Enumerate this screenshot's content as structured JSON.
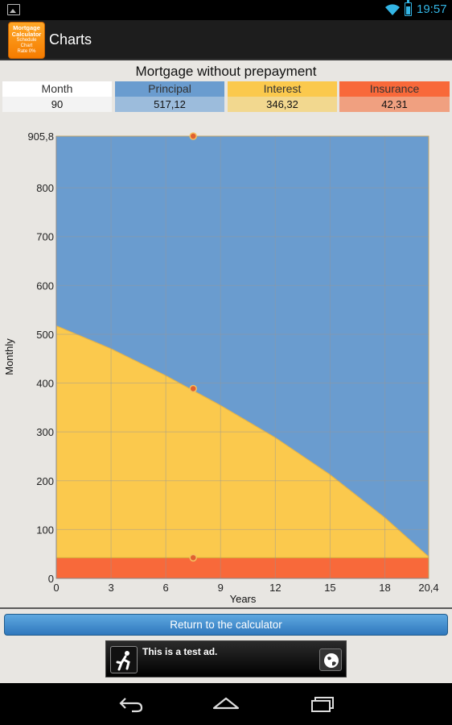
{
  "status_bar": {
    "time": "19:57"
  },
  "action_bar": {
    "title": "Charts",
    "app_icon_lines": [
      "Mortgage",
      "Calculator",
      "Schedule",
      "Chart",
      "Rate 0%"
    ]
  },
  "summary": {
    "title": "Mortgage without prepayment",
    "columns": [
      {
        "header": "Month",
        "value": "90"
      },
      {
        "header": "Principal",
        "value": "517,12"
      },
      {
        "header": "Interest",
        "value": "346,32"
      },
      {
        "header": "Insurance",
        "value": "42,31"
      }
    ]
  },
  "chart_data": {
    "type": "area",
    "stacked": true,
    "xlabel": "Years",
    "ylabel": "Monthly",
    "xlim": [
      0,
      20.4
    ],
    "ylim": [
      0,
      905.8
    ],
    "x_ticks": [
      "0",
      "3",
      "6",
      "9",
      "12",
      "15",
      "18",
      "20,4"
    ],
    "x_tick_values": [
      0,
      3,
      6,
      9,
      12,
      15,
      18,
      20.4
    ],
    "y_ticks": [
      "0",
      "100",
      "200",
      "300",
      "400",
      "500",
      "600",
      "700",
      "800",
      "905,8"
    ],
    "y_tick_values": [
      0,
      100,
      200,
      300,
      400,
      500,
      600,
      700,
      800,
      905.8
    ],
    "x": [
      0,
      3,
      6,
      9,
      12,
      15,
      18,
      20.4
    ],
    "series": [
      {
        "name": "Insurance",
        "color": "#f8693a",
        "values": [
          42.31,
          42.31,
          42.31,
          42.31,
          42.31,
          42.31,
          42.31,
          42.31
        ]
      },
      {
        "name": "Interest",
        "color": "#fbc94d",
        "values": [
          475,
          428,
          373,
          312,
          246,
          170,
          82,
          2
        ]
      },
      {
        "name": "Principal",
        "color": "#6a9ccf",
        "values": [
          388.5,
          435.5,
          490.5,
          551.5,
          617.5,
          693.5,
          781.5,
          861.5
        ]
      }
    ],
    "cursor": {
      "x": 7.5,
      "insurance": 42.31,
      "interest_top": 388.63,
      "total": 905.75
    },
    "grid": true
  },
  "return_button": {
    "label": "Return to the calculator"
  },
  "ad": {
    "text": "This is a test ad."
  },
  "colors": {
    "principal": "#6a9ccf",
    "interest": "#fbc94d",
    "insurance": "#f8693a",
    "accent": "#33b5e5"
  }
}
